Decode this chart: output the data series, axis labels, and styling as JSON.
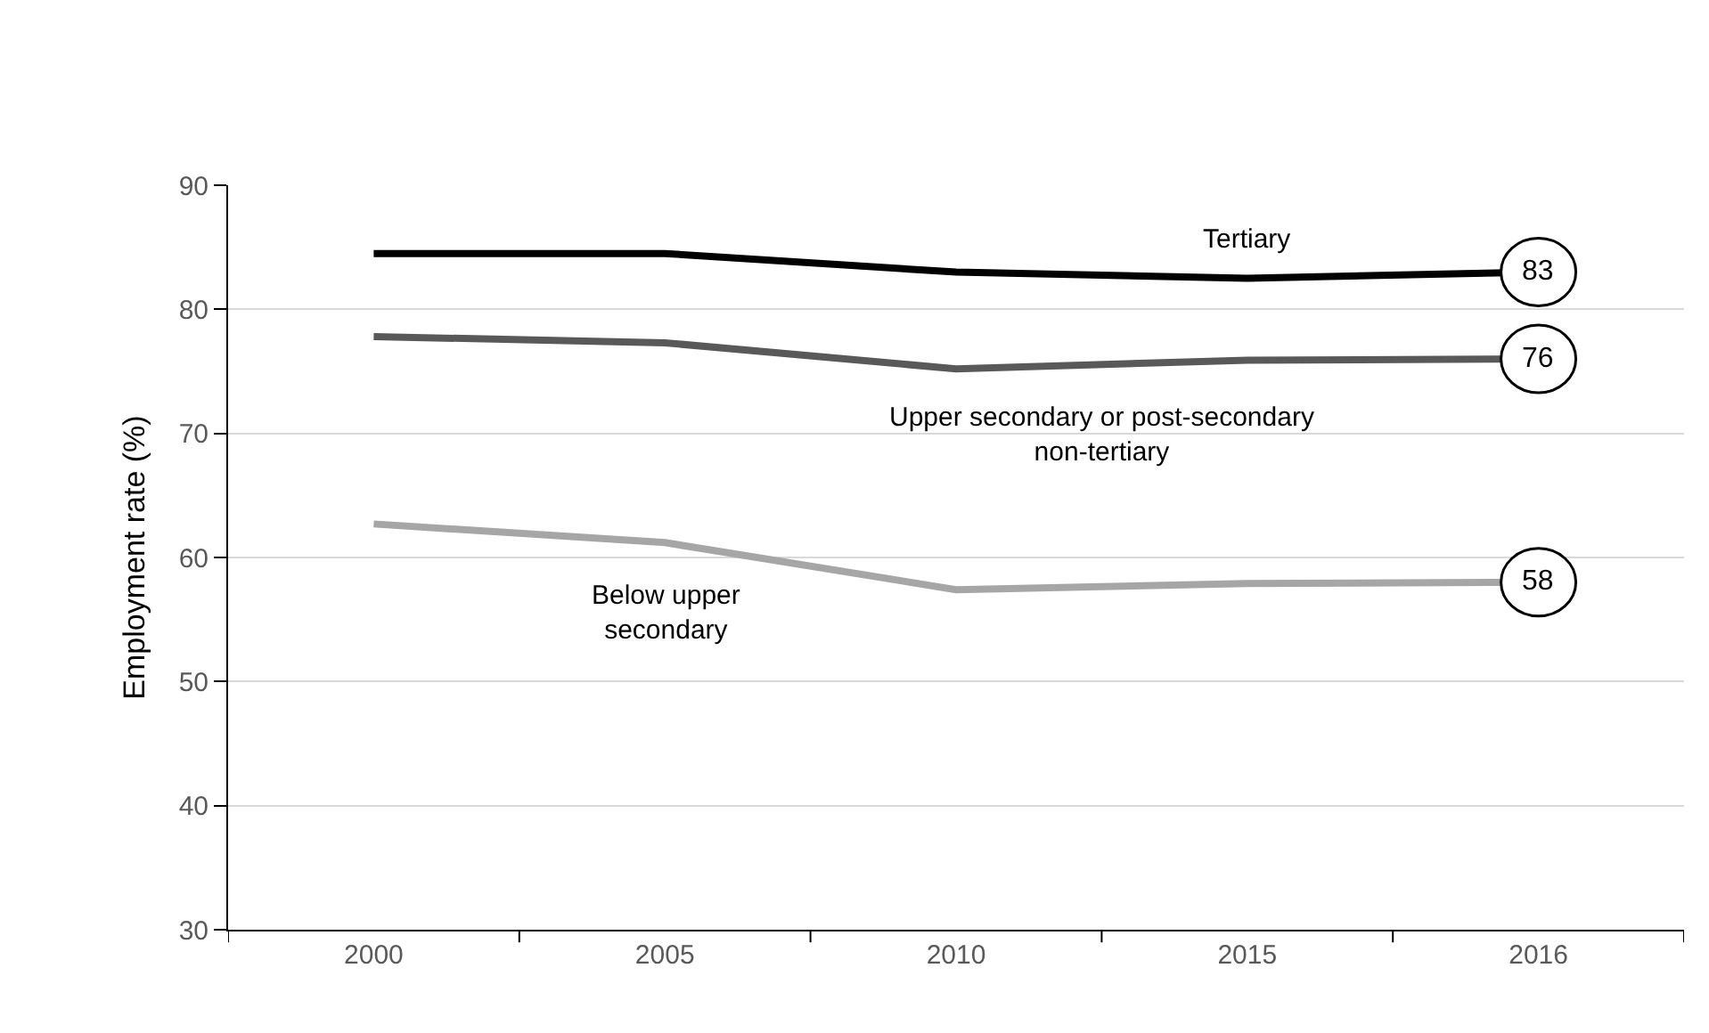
{
  "chart_data": {
    "type": "line",
    "ylabel": "Employment rate (%)",
    "categories": [
      "2000",
      "2005",
      "2010",
      "2015",
      "2016"
    ],
    "series": [
      {
        "name": "Tertiary",
        "color": "#000000",
        "values": [
          84.5,
          84.5,
          83,
          82.5,
          83
        ],
        "value_labels": [
          null,
          null,
          null,
          null,
          "83"
        ]
      },
      {
        "name": "Upper secondary or post-secondary non-tertiary",
        "color": "#595959",
        "values": [
          77.8,
          77.3,
          75.2,
          75.9,
          76
        ],
        "value_labels": [
          null,
          null,
          null,
          null,
          "76"
        ]
      },
      {
        "name": "Below upper secondary",
        "color": "#a6a6a6",
        "values": [
          62.7,
          61.2,
          57.4,
          57.9,
          58
        ],
        "value_labels": [
          null,
          null,
          null,
          null,
          "58"
        ]
      }
    ],
    "ylim": [
      30,
      90
    ],
    "yticks": [
      30,
      40,
      50,
      60,
      70,
      80,
      90
    ],
    "grid": "y",
    "legend": false,
    "marker": "none",
    "line_style": "solid"
  }
}
